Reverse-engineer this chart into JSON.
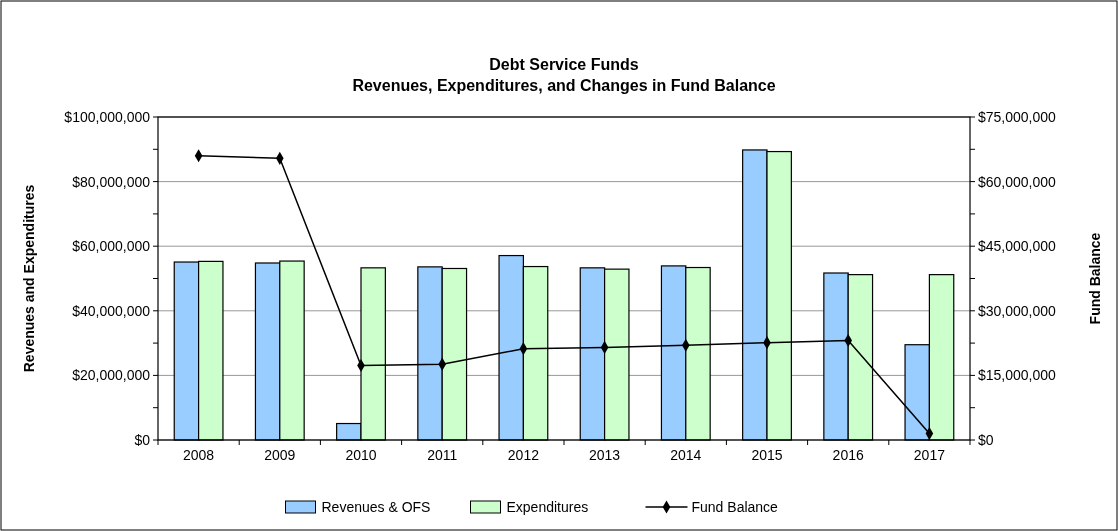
{
  "chart_data": {
    "type": "bar",
    "title": "Debt Service Funds",
    "subtitle": "Revenues, Expenditures, and Changes in Fund Balance",
    "ylabel": "Revenues and Expenditures",
    "y2label": "Fund Balance",
    "categories": [
      "2008",
      "2009",
      "2010",
      "2011",
      "2012",
      "2013",
      "2014",
      "2015",
      "2016",
      "2017"
    ],
    "series": [
      {
        "name": "Revenues & OFS",
        "color": "#99ccff",
        "values": [
          55100000,
          54800000,
          5100000,
          53600000,
          57100000,
          53300000,
          53900000,
          89800000,
          51700000,
          29500000
        ]
      },
      {
        "name": "Expenditures",
        "color": "#ccffcc",
        "values": [
          55300000,
          55400000,
          53300000,
          53100000,
          53700000,
          52900000,
          53400000,
          89300000,
          51200000,
          51200000
        ]
      },
      {
        "name": "Fund Balance",
        "type": "line",
        "axis": "y2",
        "color": "#000000",
        "marker": "diamond",
        "values": [
          66000000,
          65400000,
          17300000,
          17600000,
          21200000,
          21500000,
          22000000,
          22600000,
          23100000,
          1500000
        ]
      }
    ],
    "ylim": [
      0,
      100000000
    ],
    "yticks": [
      {
        "value": 0,
        "label": "$0"
      },
      {
        "value": 10000000,
        "label": null
      },
      {
        "value": 20000000,
        "label": "$20,000,000"
      },
      {
        "value": 30000000,
        "label": null
      },
      {
        "value": 40000000,
        "label": "$40,000,000"
      },
      {
        "value": 50000000,
        "label": null
      },
      {
        "value": 60000000,
        "label": "$60,000,000"
      },
      {
        "value": 70000000,
        "label": null
      },
      {
        "value": 80000000,
        "label": "$80,000,000"
      },
      {
        "value": 90000000,
        "label": null
      },
      {
        "value": 100000000,
        "label": "$100,000,000"
      }
    ],
    "y2lim": [
      0,
      75000000
    ],
    "y2ticks": [
      {
        "value": 0,
        "label": "$0"
      },
      {
        "value": 7500000,
        "label": null
      },
      {
        "value": 15000000,
        "label": "$15,000,000"
      },
      {
        "value": 22500000,
        "label": null
      },
      {
        "value": 30000000,
        "label": "$30,000,000"
      },
      {
        "value": 37500000,
        "label": null
      },
      {
        "value": 45000000,
        "label": "$45,000,000"
      },
      {
        "value": 52500000,
        "label": null
      },
      {
        "value": 60000000,
        "label": "$60,000,000"
      },
      {
        "value": 67500000,
        "label": null
      },
      {
        "value": 75000000,
        "label": "$75,000,000"
      }
    ],
    "grid": "y",
    "legend": "bottom"
  }
}
